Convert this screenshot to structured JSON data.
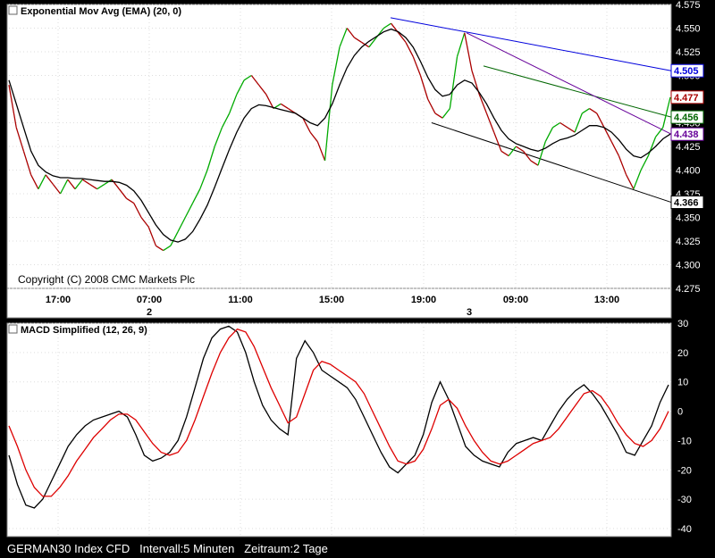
{
  "chart_data": [
    {
      "type": "line",
      "title": "Exponential Mov Avg (EMA) (20, 0)",
      "copyright": "Copyright (C) 2008 CMC Markets Plc",
      "ylim": [
        4.275,
        4.575
      ],
      "yticks": [
        "4.275",
        "4.300",
        "4.325",
        "4.350",
        "4.375",
        "4.400",
        "4.425",
        "4.450",
        "4.475",
        "4.500",
        "4.525",
        "4.550",
        "4.575"
      ],
      "xticks": [
        "17:00",
        "07:00",
        "11:00",
        "15:00",
        "19:00",
        "09:00",
        "13:00"
      ],
      "day_labels": [
        "2",
        "3"
      ],
      "price_series": [
        4.49,
        4.445,
        4.42,
        4.395,
        4.38,
        4.395,
        4.385,
        4.375,
        4.39,
        4.38,
        4.39,
        4.385,
        4.38,
        4.385,
        4.39,
        4.38,
        4.37,
        4.365,
        4.35,
        4.34,
        4.32,
        4.315,
        4.32,
        4.335,
        4.35,
        4.365,
        4.38,
        4.4,
        4.425,
        4.445,
        4.46,
        4.48,
        4.495,
        4.5,
        4.49,
        4.48,
        4.465,
        4.47,
        4.465,
        4.46,
        4.455,
        4.44,
        4.43,
        4.41,
        4.49,
        4.53,
        4.55,
        4.54,
        4.535,
        4.53,
        4.54,
        4.55,
        4.555,
        4.545,
        4.535,
        4.52,
        4.5,
        4.475,
        4.46,
        4.455,
        4.465,
        4.52,
        4.545,
        4.505,
        4.48,
        4.46,
        4.44,
        4.42,
        4.415,
        4.425,
        4.42,
        4.41,
        4.405,
        4.43,
        4.445,
        4.45,
        4.445,
        4.44,
        4.46,
        4.465,
        4.46,
        4.445,
        4.43,
        4.415,
        4.395,
        4.38,
        4.4,
        4.415,
        4.435,
        4.445,
        4.477
      ],
      "ema_series": [
        4.495,
        4.47,
        4.445,
        4.42,
        4.405,
        4.398,
        4.394,
        4.392,
        4.392,
        4.391,
        4.391,
        4.39,
        4.389,
        4.388,
        4.388,
        4.387,
        4.384,
        4.378,
        4.368,
        4.355,
        4.342,
        4.332,
        4.326,
        4.324,
        4.327,
        4.335,
        4.348,
        4.363,
        4.382,
        4.402,
        4.422,
        4.44,
        4.455,
        4.465,
        4.469,
        4.468,
        4.466,
        4.464,
        4.462,
        4.46,
        4.455,
        4.45,
        4.447,
        4.455,
        4.47,
        4.49,
        4.508,
        4.521,
        4.53,
        4.536,
        4.541,
        4.546,
        4.549,
        4.546,
        4.54,
        4.53,
        4.515,
        4.498,
        4.485,
        4.478,
        4.48,
        4.49,
        4.495,
        4.492,
        4.482,
        4.47,
        4.455,
        4.442,
        4.433,
        4.428,
        4.425,
        4.422,
        4.42,
        4.423,
        4.428,
        4.432,
        4.434,
        4.437,
        4.442,
        4.447,
        4.447,
        4.445,
        4.44,
        4.432,
        4.422,
        4.415,
        4.413,
        4.418,
        4.425,
        4.433,
        4.438
      ],
      "price_label": "4.477",
      "price_color": "#ffffff",
      "ema_color": "#000000",
      "up_color": "#00aa00",
      "down_color": "#aa0000",
      "trendlines": [
        {
          "value_label": "4.505",
          "color": "#0000dd"
        },
        {
          "value_label": "4.456",
          "color": "#006600"
        },
        {
          "value_label": "4.438",
          "color": "#660099"
        },
        {
          "value_label": "4.366",
          "color": "#000000"
        }
      ],
      "grid": true
    },
    {
      "type": "line",
      "title": "MACD Simplified (12, 26, 9)",
      "ylim": [
        -40,
        30
      ],
      "yticks": [
        "-40",
        "-30",
        "-20",
        "-10",
        "0",
        "10",
        "20",
        "30"
      ],
      "macd_series": [
        -15,
        -25,
        -32,
        -33,
        -30,
        -24,
        -18,
        -12,
        -8,
        -5,
        -3,
        -2,
        -1,
        0,
        -2,
        -8,
        -15,
        -17,
        -16,
        -14,
        -10,
        -2,
        8,
        18,
        25,
        28,
        29,
        27,
        20,
        10,
        2,
        -3,
        -6,
        -8,
        18,
        24,
        20,
        14,
        12,
        10,
        8,
        4,
        -2,
        -8,
        -14,
        -19,
        -21,
        -18,
        -15,
        -8,
        3,
        10,
        4,
        -4,
        -12,
        -15,
        -17,
        -18,
        -19,
        -14,
        -11,
        -10,
        -9,
        -10,
        -5,
        0,
        4,
        7,
        9,
        6,
        2,
        -3,
        -8,
        -14,
        -15,
        -10,
        -5,
        3,
        9
      ],
      "signal_series": [
        -5,
        -12,
        -20,
        -26,
        -29,
        -29,
        -26,
        -22,
        -17,
        -13,
        -9,
        -6,
        -3,
        -1,
        -1,
        -3,
        -7,
        -11,
        -14,
        -15,
        -14,
        -10,
        -3,
        5,
        13,
        20,
        25,
        28,
        27,
        22,
        15,
        8,
        2,
        -4,
        -2,
        6,
        14,
        17,
        16,
        14,
        12,
        10,
        6,
        0,
        -6,
        -12,
        -17,
        -18,
        -17,
        -13,
        -6,
        2,
        4,
        1,
        -5,
        -10,
        -14,
        -17,
        -18,
        -17,
        -15,
        -13,
        -11,
        -10,
        -9,
        -6,
        -2,
        2,
        6,
        7,
        5,
        1,
        -4,
        -8,
        -11,
        -12,
        -10,
        -6,
        0
      ],
      "macd_color": "#000000",
      "signal_color": "#dd0000",
      "grid": true
    }
  ],
  "footer": {
    "instrument": "GERMAN30 Index CFD",
    "interval": "Intervall:5 Minuten",
    "range": "Zeitraum:2 Tage"
  }
}
